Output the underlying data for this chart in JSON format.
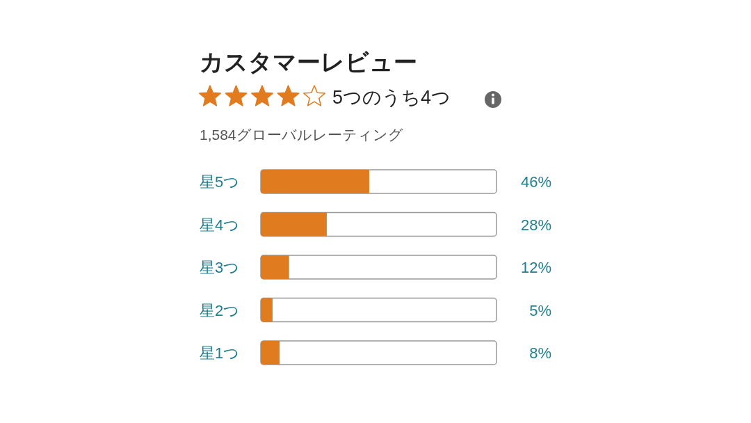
{
  "chart_data": {
    "type": "bar",
    "orientation": "horizontal",
    "title": "カスタマーレビュー",
    "subtitle": "5つのうち4つ",
    "annotations": [
      "1,584グローバルレーティング"
    ],
    "categories": [
      "星5つ",
      "星4つ",
      "星3つ",
      "星2つ",
      "星1つ"
    ],
    "values": [
      46,
      28,
      12,
      5,
      8
    ],
    "value_labels": [
      "46%",
      "28%",
      "12%",
      "5%",
      "8%"
    ],
    "color": "#e17b1f",
    "xlim": [
      0,
      100
    ],
    "tick_labels": "y"
  }
}
